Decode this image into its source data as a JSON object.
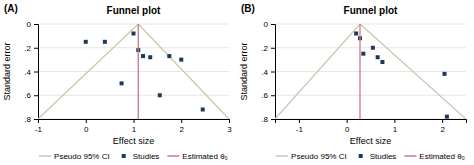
{
  "chart_data": [
    {
      "type": "scatter",
      "title": "Funnel plot",
      "annotations": [
        "(A)"
      ],
      "x_label": "Effect size",
      "y_label": "Standard error",
      "xlim": [
        -1,
        3
      ],
      "ylim": [
        0.8,
        0
      ],
      "xticks": [
        -1,
        0,
        1,
        2,
        3
      ],
      "yticks": [
        0,
        {
          "value": 0.2,
          "label": ".2"
        },
        {
          "value": 0.4,
          "label": ".4"
        },
        {
          "value": 0.6,
          "label": ".6"
        },
        {
          "value": 0.8,
          "label": ".8"
        }
      ],
      "grid": "y",
      "legend": "bottom",
      "series": [
        {
          "name": "Pseudo 95% CI",
          "type": "line",
          "color": "#c8c8b0",
          "x": [
            -1.0,
            1.1,
            3.0
          ],
          "values": [
            0.8,
            0.0,
            0.8
          ]
        },
        {
          "name": "Studies",
          "type": "scatter",
          "color": "#1c3a5c",
          "marker": "square",
          "x": [
            0.0,
            0.4,
            0.75,
            1.0,
            1.1,
            1.2,
            1.35,
            1.55,
            1.75,
            2.0,
            2.45
          ],
          "values": [
            0.15,
            0.15,
            0.5,
            0.08,
            0.22,
            0.27,
            0.28,
            0.6,
            0.27,
            0.3,
            0.72
          ]
        },
        {
          "name": "Estimated θ₀",
          "type": "line",
          "color": "#cc7788",
          "x": [
            1.1,
            1.1
          ],
          "values": [
            0.8,
            0
          ]
        }
      ]
    },
    {
      "type": "scatter",
      "title": "Funnel plot",
      "annotations": [
        "(B)"
      ],
      "x_label": "Effect size",
      "y_label": "Standard error",
      "xlim": [
        -1.5,
        2.5
      ],
      "ylim": [
        0.8,
        0
      ],
      "xticks": [
        -1,
        0,
        1,
        2
      ],
      "yticks": [
        0,
        {
          "value": 0.2,
          "label": ".2"
        },
        {
          "value": 0.4,
          "label": ".4"
        },
        {
          "value": 0.6,
          "label": ".6"
        },
        {
          "value": 0.8,
          "label": ".8"
        }
      ],
      "grid": "y",
      "legend": "bottom",
      "series": [
        {
          "name": "Pseudo 95% CI",
          "type": "line",
          "color": "#c8c8b0",
          "x": [
            -1.5,
            0.28,
            2.5
          ],
          "values": [
            0.8,
            0.0,
            0.8
          ]
        },
        {
          "name": "Studies",
          "type": "scatter",
          "color": "#1c3a5c",
          "marker": "square",
          "x": [
            0.2,
            0.28,
            0.35,
            0.55,
            0.65,
            0.75,
            2.05,
            2.1
          ],
          "values": [
            0.08,
            0.12,
            0.25,
            0.2,
            0.28,
            0.32,
            0.42,
            0.78
          ]
        },
        {
          "name": "Estimated θ₀",
          "type": "line",
          "color": "#cc7788",
          "x": [
            0.28,
            0.28
          ],
          "values": [
            0.8,
            0
          ]
        }
      ]
    }
  ]
}
